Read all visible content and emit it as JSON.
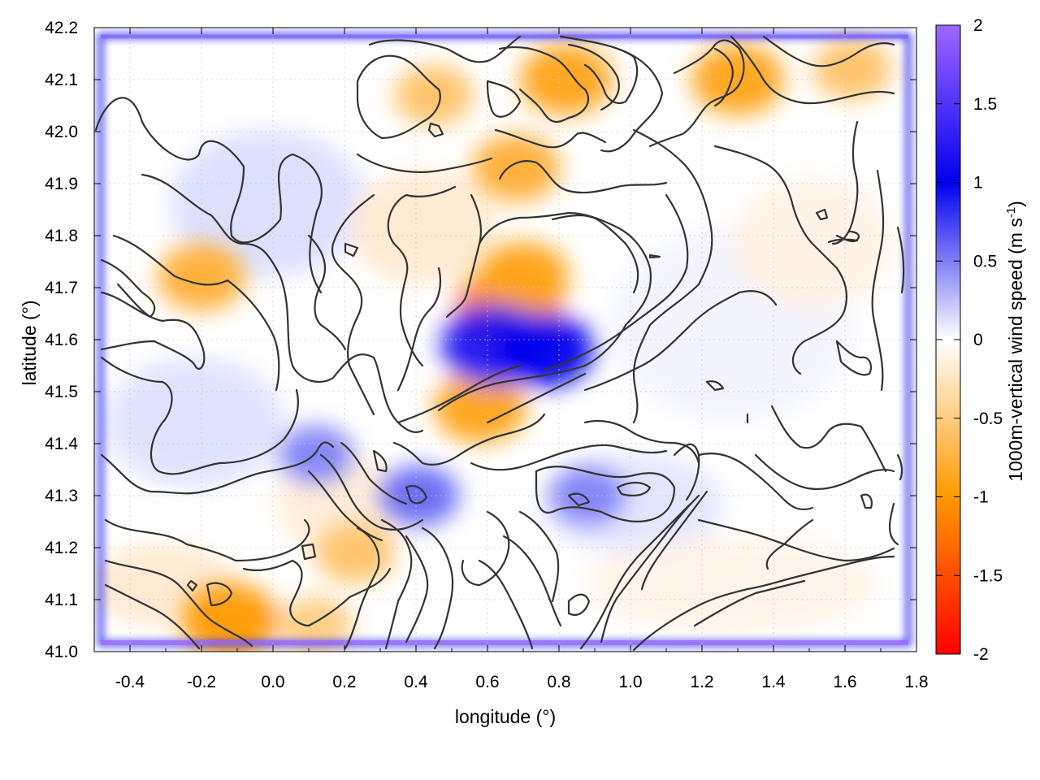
{
  "chart_data": {
    "type": "heatmap",
    "xlabel": "longitude (°)",
    "ylabel": "latitude (°)",
    "xlim": [
      -0.5,
      1.8
    ],
    "ylim": [
      41.0,
      42.2
    ],
    "x_ticks": [
      -0.4,
      -0.2,
      0.0,
      0.2,
      0.4,
      0.6,
      0.8,
      1.0,
      1.2,
      1.4,
      1.6,
      1.8
    ],
    "x_tick_labels": [
      "-0.4",
      "-0.2",
      "0.0",
      "0.2",
      "0.4",
      "0.6",
      "0.8",
      "1.0",
      "1.2",
      "1.4",
      "1.6",
      "1.8"
    ],
    "y_ticks": [
      41.0,
      41.1,
      41.2,
      41.3,
      41.4,
      41.5,
      41.6,
      41.7,
      41.8,
      41.9,
      42.0,
      42.1,
      42.2
    ],
    "y_tick_labels": [
      "41.0",
      "41.1",
      "41.2",
      "41.3",
      "41.4",
      "41.5",
      "41.6",
      "41.7",
      "41.8",
      "41.9",
      "42.0",
      "42.1",
      "42.2"
    ],
    "grid": true,
    "colorbar": {
      "label": "1000m-vertical wind speed (m s",
      "label_sup": "-1",
      "label_close": ")",
      "range": [
        -2,
        2
      ],
      "ticks": [
        2,
        1.5,
        1,
        0.5,
        0,
        -0.5,
        -1,
        -1.5,
        -2
      ],
      "tick_labels": [
        "2",
        "1.5",
        "1",
        "0.5",
        "0",
        "-0.5",
        "-1",
        "-1.5",
        "-2"
      ],
      "stops": [
        {
          "value": 2,
          "color": "#a066ff"
        },
        {
          "value": 1,
          "color": "#0000ee"
        },
        {
          "value": 0,
          "color": "#ffffff"
        },
        {
          "value": -1,
          "color": "#ff9900"
        },
        {
          "value": -2,
          "color": "#ff0000"
        }
      ]
    },
    "features": [
      {
        "kind": "updraft",
        "lon": 0.66,
        "lat": 41.66,
        "value": -1.2
      },
      {
        "kind": "updraft",
        "lon": 0.7,
        "lat": 41.72,
        "value": -0.9
      },
      {
        "kind": "updraft",
        "lon": -0.2,
        "lat": 41.72,
        "value": -0.8
      },
      {
        "kind": "updraft",
        "lon": -0.12,
        "lat": 41.06,
        "value": -1.0
      },
      {
        "kind": "updraft",
        "lon": 0.58,
        "lat": 41.47,
        "value": -0.9
      },
      {
        "kind": "updraft",
        "lon": 0.68,
        "lat": 41.93,
        "value": -0.8
      },
      {
        "kind": "updraft",
        "lon": 0.82,
        "lat": 42.1,
        "value": -0.9
      },
      {
        "kind": "updraft",
        "lon": 0.45,
        "lat": 42.07,
        "value": -0.6
      },
      {
        "kind": "updraft",
        "lon": 1.3,
        "lat": 42.1,
        "value": -0.9
      },
      {
        "kind": "updraft",
        "lon": 1.62,
        "lat": 42.12,
        "value": -0.6
      },
      {
        "kind": "updraft",
        "lon": 0.23,
        "lat": 41.19,
        "value": -0.6
      },
      {
        "kind": "updraft",
        "lon": 0.12,
        "lat": 41.05,
        "value": -0.5
      },
      {
        "kind": "downdraft",
        "lon": 0.62,
        "lat": 41.59,
        "value": 1.2
      },
      {
        "kind": "downdraft",
        "lon": 0.76,
        "lat": 41.58,
        "value": 1.0
      },
      {
        "kind": "downdraft",
        "lon": 0.12,
        "lat": 41.38,
        "value": 0.5
      },
      {
        "kind": "downdraft",
        "lon": 0.41,
        "lat": 41.3,
        "value": 0.6
      },
      {
        "kind": "downdraft",
        "lon": 0.88,
        "lat": 41.3,
        "value": 0.5
      }
    ]
  }
}
